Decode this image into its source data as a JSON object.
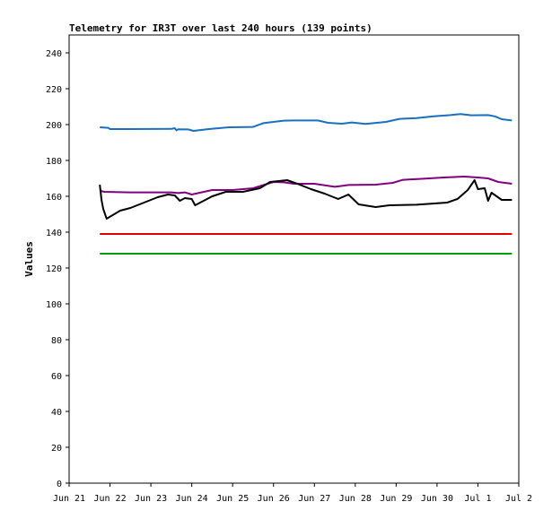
{
  "chart_data": {
    "type": "line",
    "title": "Telemetry for IR3T over last 240 hours (139 points)",
    "xlabel": "",
    "ylabel": "Values",
    "ylim": [
      0,
      250
    ],
    "yticks": [
      0,
      20,
      40,
      60,
      80,
      100,
      120,
      140,
      160,
      180,
      200,
      220,
      240
    ],
    "xlim": [
      "2021-06-21",
      "2021-07-02"
    ],
    "xticks": [
      {
        "date": "2021-06-21",
        "label": "Jun 21"
      },
      {
        "date": "2021-06-22",
        "label": "Jun 22"
      },
      {
        "date": "2021-06-23",
        "label": "Jun 23"
      },
      {
        "date": "2021-06-24",
        "label": "Jun 24"
      },
      {
        "date": "2021-06-25",
        "label": "Jun 25"
      },
      {
        "date": "2021-06-26",
        "label": "Jun 26"
      },
      {
        "date": "2021-06-27",
        "label": "Jun 27"
      },
      {
        "date": "2021-06-28",
        "label": "Jun 28"
      },
      {
        "date": "2021-06-29",
        "label": "Jun 29"
      },
      {
        "date": "2021-06-30",
        "label": "Jun 30"
      },
      {
        "date": "2021-07-01",
        "label": "Jul 1"
      },
      {
        "date": "2021-07-02",
        "label": "Jul 2"
      }
    ],
    "grid": false,
    "legend": "none",
    "series": [
      {
        "color": "#1a6fbf",
        "points": [
          [
            "2021-06-21 18:00",
            198.5
          ],
          [
            "2021-06-21 23:00",
            198.2
          ],
          [
            "2021-06-22 00:00",
            197.5
          ],
          [
            "2021-06-22 12:00",
            197.5
          ],
          [
            "2021-06-23 12:00",
            197.6
          ],
          [
            "2021-06-23 14:00",
            198.0
          ],
          [
            "2021-06-23 15:00",
            196.8
          ],
          [
            "2021-06-23 16:00",
            197.4
          ],
          [
            "2021-06-23 22:00",
            197.3
          ],
          [
            "2021-06-24 01:00",
            196.5
          ],
          [
            "2021-06-24 10:00",
            197.5
          ],
          [
            "2021-06-24 22:00",
            198.5
          ],
          [
            "2021-06-25 12:00",
            198.7
          ],
          [
            "2021-06-25 18:00",
            200.8
          ],
          [
            "2021-06-26 00:00",
            201.5
          ],
          [
            "2021-06-26 06:00",
            202.2
          ],
          [
            "2021-06-26 12:00",
            202.3
          ],
          [
            "2021-06-27 02:00",
            202.3
          ],
          [
            "2021-06-27 08:00",
            201.0
          ],
          [
            "2021-06-27 16:00",
            200.5
          ],
          [
            "2021-06-27 22:00",
            201.2
          ],
          [
            "2021-06-28 06:00",
            200.4
          ],
          [
            "2021-06-28 18:00",
            201.5
          ],
          [
            "2021-06-29 02:00",
            203.2
          ],
          [
            "2021-06-29 12:00",
            203.6
          ],
          [
            "2021-06-29 22:00",
            204.6
          ],
          [
            "2021-06-30 08:00",
            205.3
          ],
          [
            "2021-06-30 14:00",
            205.9
          ],
          [
            "2021-06-30 20:00",
            205.2
          ],
          [
            "2021-07-01 06:00",
            205.3
          ],
          [
            "2021-07-01 10:00",
            204.6
          ],
          [
            "2021-07-01 14:00",
            203.0
          ],
          [
            "2021-07-01 20:00",
            202.3
          ]
        ]
      },
      {
        "color": "#800080",
        "points": [
          [
            "2021-06-21 18:00",
            164.0
          ],
          [
            "2021-06-21 19:00",
            162.8
          ],
          [
            "2021-06-21 21:00",
            162.5
          ],
          [
            "2021-06-22 12:00",
            162.2
          ],
          [
            "2021-06-23 12:00",
            162.2
          ],
          [
            "2021-06-23 16:00",
            161.8
          ],
          [
            "2021-06-23 20:00",
            162.2
          ],
          [
            "2021-06-24 00:00",
            161.0
          ],
          [
            "2021-06-24 12:00",
            163.5
          ],
          [
            "2021-06-25 00:00",
            163.5
          ],
          [
            "2021-06-25 12:00",
            164.5
          ],
          [
            "2021-06-26 00:00",
            168.0
          ],
          [
            "2021-06-26 06:00",
            167.8
          ],
          [
            "2021-06-26 12:00",
            167.0
          ],
          [
            "2021-06-27 00:00",
            167.0
          ],
          [
            "2021-06-27 12:00",
            165.3
          ],
          [
            "2021-06-27 20:00",
            166.3
          ],
          [
            "2021-06-28 12:00",
            166.5
          ],
          [
            "2021-06-28 22:00",
            167.5
          ],
          [
            "2021-06-29 04:00",
            169.2
          ],
          [
            "2021-06-29 16:00",
            169.8
          ],
          [
            "2021-06-30 04:00",
            170.5
          ],
          [
            "2021-06-30 16:00",
            171.0
          ],
          [
            "2021-07-01 00:00",
            170.5
          ],
          [
            "2021-07-01 06:00",
            170.0
          ],
          [
            "2021-07-01 12:00",
            168.0
          ],
          [
            "2021-07-01 20:00",
            167.0
          ]
        ]
      },
      {
        "color": "#000000",
        "points": [
          [
            "2021-06-21 18:00",
            166.5
          ],
          [
            "2021-06-21 19:00",
            158.0
          ],
          [
            "2021-06-21 20:00",
            153.0
          ],
          [
            "2021-06-21 22:00",
            147.5
          ],
          [
            "2021-06-22 06:00",
            152.0
          ],
          [
            "2021-06-22 12:00",
            153.5
          ],
          [
            "2021-06-23 04:00",
            159.5
          ],
          [
            "2021-06-23 10:00",
            161.0
          ],
          [
            "2021-06-23 14:00",
            160.5
          ],
          [
            "2021-06-23 17:00",
            157.5
          ],
          [
            "2021-06-23 20:00",
            159.0
          ],
          [
            "2021-06-24 00:00",
            158.5
          ],
          [
            "2021-06-24 02:00",
            155.0
          ],
          [
            "2021-06-24 12:00",
            160.0
          ],
          [
            "2021-06-24 20:00",
            162.5
          ],
          [
            "2021-06-25 06:00",
            162.5
          ],
          [
            "2021-06-25 16:00",
            164.5
          ],
          [
            "2021-06-25 22:00",
            168.0
          ],
          [
            "2021-06-26 08:00",
            169.0
          ],
          [
            "2021-06-26 14:00",
            167.0
          ],
          [
            "2021-06-26 22:00",
            164.0
          ],
          [
            "2021-06-27 06:00",
            161.5
          ],
          [
            "2021-06-27 14:00",
            158.5
          ],
          [
            "2021-06-27 20:00",
            161.0
          ],
          [
            "2021-06-28 02:00",
            155.5
          ],
          [
            "2021-06-28 12:00",
            154.0
          ],
          [
            "2021-06-28 20:00",
            155.0
          ],
          [
            "2021-06-29 12:00",
            155.3
          ],
          [
            "2021-06-30 06:00",
            156.5
          ],
          [
            "2021-06-30 12:00",
            158.5
          ],
          [
            "2021-06-30 18:00",
            163.5
          ],
          [
            "2021-06-30 22:00",
            169.0
          ],
          [
            "2021-07-01 00:00",
            164.0
          ],
          [
            "2021-07-01 04:00",
            164.5
          ],
          [
            "2021-07-01 06:00",
            157.5
          ],
          [
            "2021-07-01 08:00",
            162.0
          ],
          [
            "2021-07-01 14:00",
            158.0
          ],
          [
            "2021-07-01 20:00",
            158.0
          ]
        ]
      },
      {
        "color": "#e00000",
        "points": [
          [
            "2021-06-21 18:00",
            139
          ],
          [
            "2021-07-01 20:00",
            139
          ]
        ]
      },
      {
        "color": "#00a000",
        "points": [
          [
            "2021-06-21 18:00",
            128
          ],
          [
            "2021-07-01 20:00",
            128
          ]
        ]
      }
    ]
  }
}
